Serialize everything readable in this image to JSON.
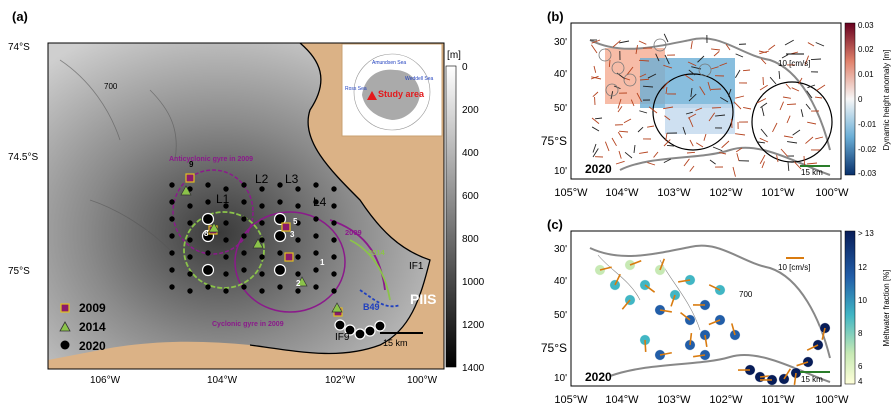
{
  "panels": {
    "a": {
      "label": "(a)"
    },
    "b": {
      "label": "(b)"
    },
    "c": {
      "label": "(c)"
    }
  },
  "panel_a": {
    "lat_ticks": [
      "74°S",
      "74.5°S",
      "75°S"
    ],
    "lon_ticks": [
      "106°W",
      "104°W",
      "102°W",
      "100°W"
    ],
    "contour_label": "700",
    "colorbar": {
      "unit": "[m]",
      "ticks": [
        "0",
        "200",
        "400",
        "600",
        "800",
        "1000",
        "1200",
        "1400"
      ]
    },
    "inset": {
      "title": "Study area",
      "amundsen": "Amundsen Sea",
      "ross": "Ross Sea",
      "weddell": "Weddell Sea"
    },
    "line_labels": [
      "L1",
      "L2",
      "L3",
      "L4"
    ],
    "gyre_anticyclonic": "Anticyclonic gyre in 2009",
    "gyre_cyclonic": "Cyclonic gyre in 2009",
    "arrow_2009": "2009",
    "arrow_2014": "2014",
    "legend": [
      {
        "label": "2009",
        "marker": "square",
        "color": "#8b1a6b"
      },
      {
        "label": "2014",
        "marker": "triangle",
        "color": "#8bc34a"
      },
      {
        "label": "2020",
        "marker": "circle",
        "color": "#000000"
      }
    ],
    "station_numbers": [
      "9",
      "8",
      "5",
      "3",
      "1",
      "2"
    ],
    "ice_labels": [
      "IF1",
      "IF9",
      "PIIS",
      "B49"
    ],
    "scale_bar": "15 km"
  },
  "panel_b": {
    "year": "2020",
    "lat_ticks": [
      "30'",
      "40'",
      "50'",
      "75°S",
      "10'"
    ],
    "lon_ticks": [
      "105°W",
      "104°W",
      "103°W",
      "102°W",
      "101°W",
      "100°W"
    ],
    "velocity_ref": "10 [cm/s]",
    "scale_bar": "15 km",
    "colorbar": {
      "label": "Dynamic height anomaly [m]",
      "ticks": [
        "0.03",
        "0.02",
        "0.01",
        "0",
        "-0.01",
        "-0.02",
        "-0.03"
      ]
    }
  },
  "panel_c": {
    "year": "2020",
    "lat_ticks": [
      "30'",
      "40'",
      "50'",
      "75°S",
      "10'"
    ],
    "lon_ticks": [
      "105°W",
      "104°W",
      "103°W",
      "102°W",
      "101°W",
      "100°W"
    ],
    "velocity_ref": "10 [cm/s]",
    "scale_bar": "15 km",
    "contour_label": "700",
    "colorbar": {
      "label": "Meltwater fraction [%]",
      "ticks": [
        "> 13",
        "12",
        "10",
        "8",
        "6",
        "4"
      ]
    }
  },
  "chart_data": [
    {
      "type": "scatter",
      "panel": "a",
      "series": [
        {
          "name": "2009",
          "values": 7
        },
        {
          "name": "2014",
          "values": 7
        },
        {
          "name": "2020",
          "values": 60
        }
      ],
      "color_scale": {
        "unit": "m",
        "range": [
          0,
          1400
        ]
      }
    },
    {
      "type": "heatmap",
      "panel": "b",
      "color_scale": {
        "label": "Dynamic height anomaly [m]",
        "range": [
          -0.03,
          0.03
        ]
      }
    },
    {
      "type": "scatter",
      "panel": "c",
      "color_scale": {
        "label": "Meltwater fraction [%]",
        "range": [
          4,
          13
        ]
      }
    }
  ]
}
